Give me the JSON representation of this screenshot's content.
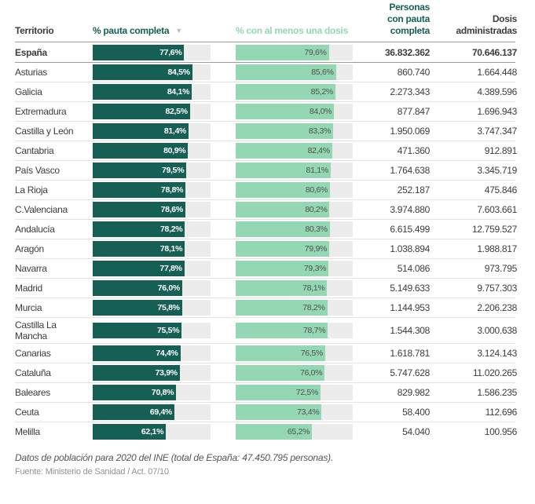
{
  "table": {
    "headers": {
      "territory": "Territorio",
      "pct_full": "% pauta completa",
      "sort_icon": "▼",
      "pct_one_dose": "% con al menos una dosis",
      "persons_full": "Personas con pauta completa",
      "doses": "Dosis administradas"
    },
    "rows": [
      {
        "name": "España",
        "total": true,
        "pct_full": 77.6,
        "pct_full_label": "77,6%",
        "pct_one": 79.6,
        "pct_one_label": "79,6%",
        "persons": "36.832.362",
        "doses": "70.646.137"
      },
      {
        "name": "Asturias",
        "total": false,
        "pct_full": 84.5,
        "pct_full_label": "84,5%",
        "pct_one": 85.6,
        "pct_one_label": "85,6%",
        "persons": "860.740",
        "doses": "1.664.448"
      },
      {
        "name": "Galicia",
        "total": false,
        "pct_full": 84.1,
        "pct_full_label": "84,1%",
        "pct_one": 85.2,
        "pct_one_label": "85,2%",
        "persons": "2.273.343",
        "doses": "4.389.596"
      },
      {
        "name": "Extremadura",
        "total": false,
        "pct_full": 82.5,
        "pct_full_label": "82,5%",
        "pct_one": 84.0,
        "pct_one_label": "84,0%",
        "persons": "877.847",
        "doses": "1.696.943"
      },
      {
        "name": "Castilla y León",
        "total": false,
        "pct_full": 81.4,
        "pct_full_label": "81,4%",
        "pct_one": 83.3,
        "pct_one_label": "83,3%",
        "persons": "1.950.069",
        "doses": "3.747.347"
      },
      {
        "name": "Cantabria",
        "total": false,
        "pct_full": 80.9,
        "pct_full_label": "80,9%",
        "pct_one": 82.4,
        "pct_one_label": "82,4%",
        "persons": "471.360",
        "doses": "912.891"
      },
      {
        "name": "País Vasco",
        "total": false,
        "pct_full": 79.5,
        "pct_full_label": "79,5%",
        "pct_one": 81.1,
        "pct_one_label": "81,1%",
        "persons": "1.764.638",
        "doses": "3.345.719"
      },
      {
        "name": "La Rioja",
        "total": false,
        "pct_full": 78.8,
        "pct_full_label": "78,8%",
        "pct_one": 80.6,
        "pct_one_label": "80,6%",
        "persons": "252.187",
        "doses": "475.846"
      },
      {
        "name": "C.Valenciana",
        "total": false,
        "pct_full": 78.6,
        "pct_full_label": "78,6%",
        "pct_one": 80.2,
        "pct_one_label": "80,2%",
        "persons": "3.974.880",
        "doses": "7.603.661"
      },
      {
        "name": "Andalucía",
        "total": false,
        "pct_full": 78.2,
        "pct_full_label": "78,2%",
        "pct_one": 80.3,
        "pct_one_label": "80,3%",
        "persons": "6.615.499",
        "doses": "12.759.527"
      },
      {
        "name": "Aragón",
        "total": false,
        "pct_full": 78.1,
        "pct_full_label": "78,1%",
        "pct_one": 79.9,
        "pct_one_label": "79,9%",
        "persons": "1.038.894",
        "doses": "1.988.817"
      },
      {
        "name": "Navarra",
        "total": false,
        "pct_full": 77.8,
        "pct_full_label": "77,8%",
        "pct_one": 79.3,
        "pct_one_label": "79,3%",
        "persons": "514.086",
        "doses": "973.795"
      },
      {
        "name": "Madrid",
        "total": false,
        "pct_full": 76.0,
        "pct_full_label": "76,0%",
        "pct_one": 78.1,
        "pct_one_label": "78,1%",
        "persons": "5.149.633",
        "doses": "9.757.303"
      },
      {
        "name": "Murcia",
        "total": false,
        "pct_full": 75.8,
        "pct_full_label": "75,8%",
        "pct_one": 78.2,
        "pct_one_label": "78,2%",
        "persons": "1.144.953",
        "doses": "2.206.238"
      },
      {
        "name": "Castilla La Mancha",
        "total": false,
        "pct_full": 75.5,
        "pct_full_label": "75,5%",
        "pct_one": 78.7,
        "pct_one_label": "78,7%",
        "persons": "1.544.308",
        "doses": "3.000.638"
      },
      {
        "name": "Canarias",
        "total": false,
        "pct_full": 74.4,
        "pct_full_label": "74,4%",
        "pct_one": 76.5,
        "pct_one_label": "76,5%",
        "persons": "1.618.781",
        "doses": "3.124.143"
      },
      {
        "name": "Cataluña",
        "total": false,
        "pct_full": 73.9,
        "pct_full_label": "73,9%",
        "pct_one": 76.0,
        "pct_one_label": "76,0%",
        "persons": "5.747.628",
        "doses": "11.020.265"
      },
      {
        "name": "Baleares",
        "total": false,
        "pct_full": 70.8,
        "pct_full_label": "70,8%",
        "pct_one": 72.5,
        "pct_one_label": "72,5%",
        "persons": "829.982",
        "doses": "1.586.235"
      },
      {
        "name": "Ceuta",
        "total": false,
        "pct_full": 69.4,
        "pct_full_label": "69,4%",
        "pct_one": 73.4,
        "pct_one_label": "73,4%",
        "persons": "58.400",
        "doses": "112.696"
      },
      {
        "name": "Melilla",
        "total": false,
        "pct_full": 62.1,
        "pct_full_label": "62,1%",
        "pct_one": 65.2,
        "pct_one_label": "65,2%",
        "persons": "54.040",
        "doses": "100.956"
      }
    ]
  },
  "footer": {
    "note": "Datos de población para 2020 del INE (total de España: 47.450.795 personas).",
    "source": "Fuente: Ministerio de Sanidad / Act. 07/10"
  },
  "colors": {
    "bar_full": "#165f55",
    "bar_one_dose": "#93d8b3",
    "bar_track": "#ececec"
  },
  "chart_data": {
    "type": "bar",
    "orientation": "horizontal",
    "title": "",
    "xlabel": "",
    "ylabel": "Territorio",
    "xlim": [
      0,
      100
    ],
    "grid": false,
    "categories": [
      "España",
      "Asturias",
      "Galicia",
      "Extremadura",
      "Castilla y León",
      "Cantabria",
      "País Vasco",
      "La Rioja",
      "C.Valenciana",
      "Andalucía",
      "Aragón",
      "Navarra",
      "Madrid",
      "Murcia",
      "Castilla La Mancha",
      "Canarias",
      "Cataluña",
      "Baleares",
      "Ceuta",
      "Melilla"
    ],
    "series": [
      {
        "name": "% pauta completa",
        "color": "#165f55",
        "values": [
          77.6,
          84.5,
          84.1,
          82.5,
          81.4,
          80.9,
          79.5,
          78.8,
          78.6,
          78.2,
          78.1,
          77.8,
          76.0,
          75.8,
          75.5,
          74.4,
          73.9,
          70.8,
          69.4,
          62.1
        ]
      },
      {
        "name": "% con al menos una dosis",
        "color": "#93d8b3",
        "values": [
          79.6,
          85.6,
          85.2,
          84.0,
          83.3,
          82.4,
          81.1,
          80.6,
          80.2,
          80.3,
          79.9,
          79.3,
          78.1,
          78.2,
          78.7,
          76.5,
          76.0,
          72.5,
          73.4,
          65.2
        ]
      },
      {
        "name": "Personas con pauta completa",
        "values": [
          36832362,
          860740,
          2273343,
          877847,
          1950069,
          471360,
          1764638,
          252187,
          3974880,
          6615499,
          1038894,
          514086,
          5149633,
          1144953,
          1544308,
          1618781,
          5747628,
          829982,
          58400,
          54040
        ]
      },
      {
        "name": "Dosis administradas",
        "values": [
          70646137,
          1664448,
          4389596,
          1696943,
          3747347,
          912891,
          3345719,
          475846,
          7603661,
          12759527,
          1988817,
          973795,
          9757303,
          2206238,
          3000638,
          3124143,
          11020265,
          1586235,
          112696,
          100956
        ]
      }
    ]
  }
}
